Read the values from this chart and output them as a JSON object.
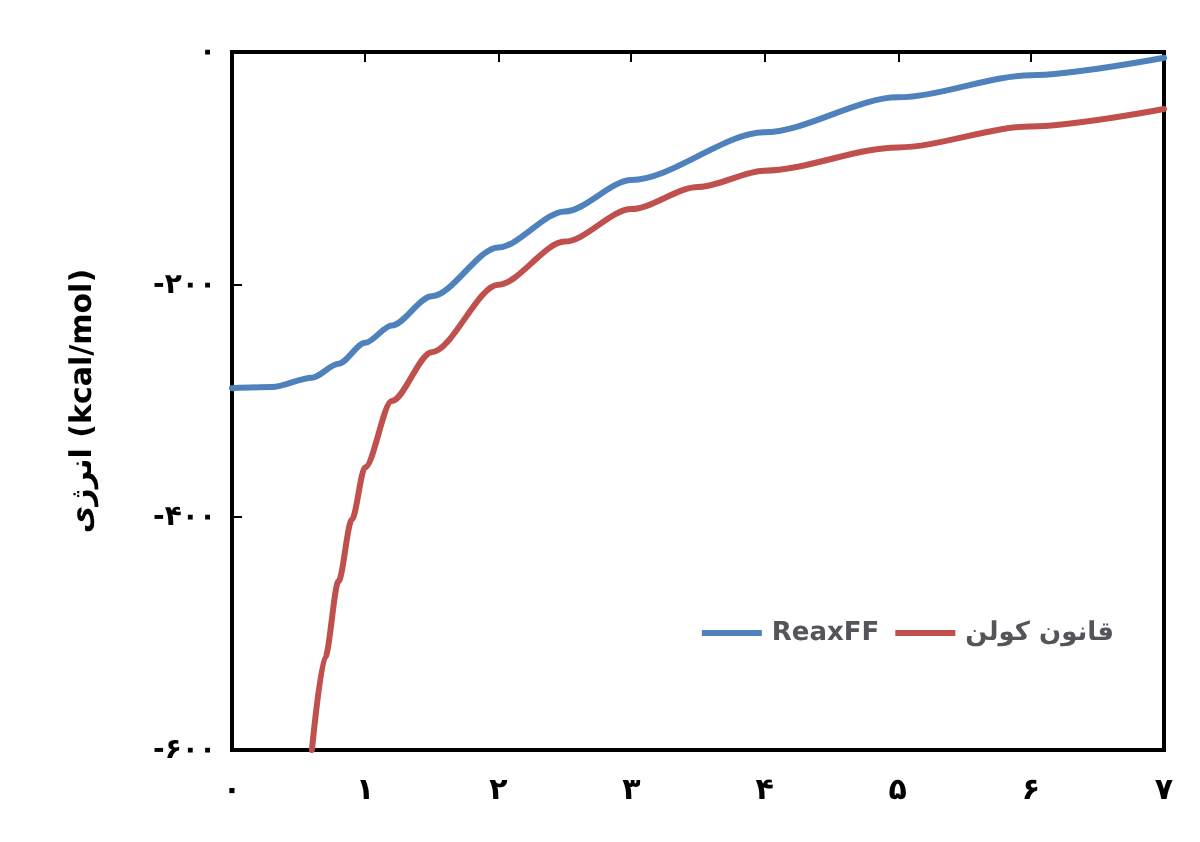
{
  "chart_data": {
    "type": "line",
    "ylabel": "انرژی (kcal/mol)",
    "xlim": [
      0,
      7
    ],
    "ylim": [
      -600,
      0
    ],
    "xticks": [
      {
        "value": 0,
        "label": "۰"
      },
      {
        "value": 1,
        "label": "۱"
      },
      {
        "value": 2,
        "label": "۲"
      },
      {
        "value": 3,
        "label": "۳"
      },
      {
        "value": 4,
        "label": "۴"
      },
      {
        "value": 5,
        "label": "۵"
      },
      {
        "value": 6,
        "label": "۶"
      },
      {
        "value": 7,
        "label": "۷"
      }
    ],
    "yticks": [
      {
        "value": -600,
        "label": "-۶۰۰"
      },
      {
        "value": -400,
        "label": "-۴۰۰"
      },
      {
        "value": -200,
        "label": "-۲۰۰"
      },
      {
        "value": 0,
        "label": "۰"
      }
    ],
    "series": [
      {
        "name": "ReaxFF",
        "color": "#4f81bd",
        "x": [
          0,
          0.3,
          0.6,
          0.8,
          1,
          1.2,
          1.5,
          2,
          2.5,
          3,
          4,
          5,
          6,
          7
        ],
        "values": [
          -289,
          -288,
          -280,
          -268,
          -250,
          -235,
          -210,
          -168,
          -137,
          -110,
          -69,
          -39,
          -20,
          -5
        ]
      },
      {
        "name": "قانون کولن",
        "color": "#c0504d",
        "x": [
          0.6,
          0.7,
          0.8,
          0.9,
          1,
          1.2,
          1.5,
          2,
          2.5,
          3,
          3.5,
          4,
          5,
          6,
          7
        ],
        "values": [
          -600,
          -520,
          -455,
          -402,
          -357,
          -300,
          -258,
          -200,
          -163,
          -135,
          -116,
          -102,
          -82,
          -64,
          -49
        ]
      }
    ],
    "grid": false,
    "legend": "bottom right",
    "marker": "none",
    "line_style": "solid"
  }
}
